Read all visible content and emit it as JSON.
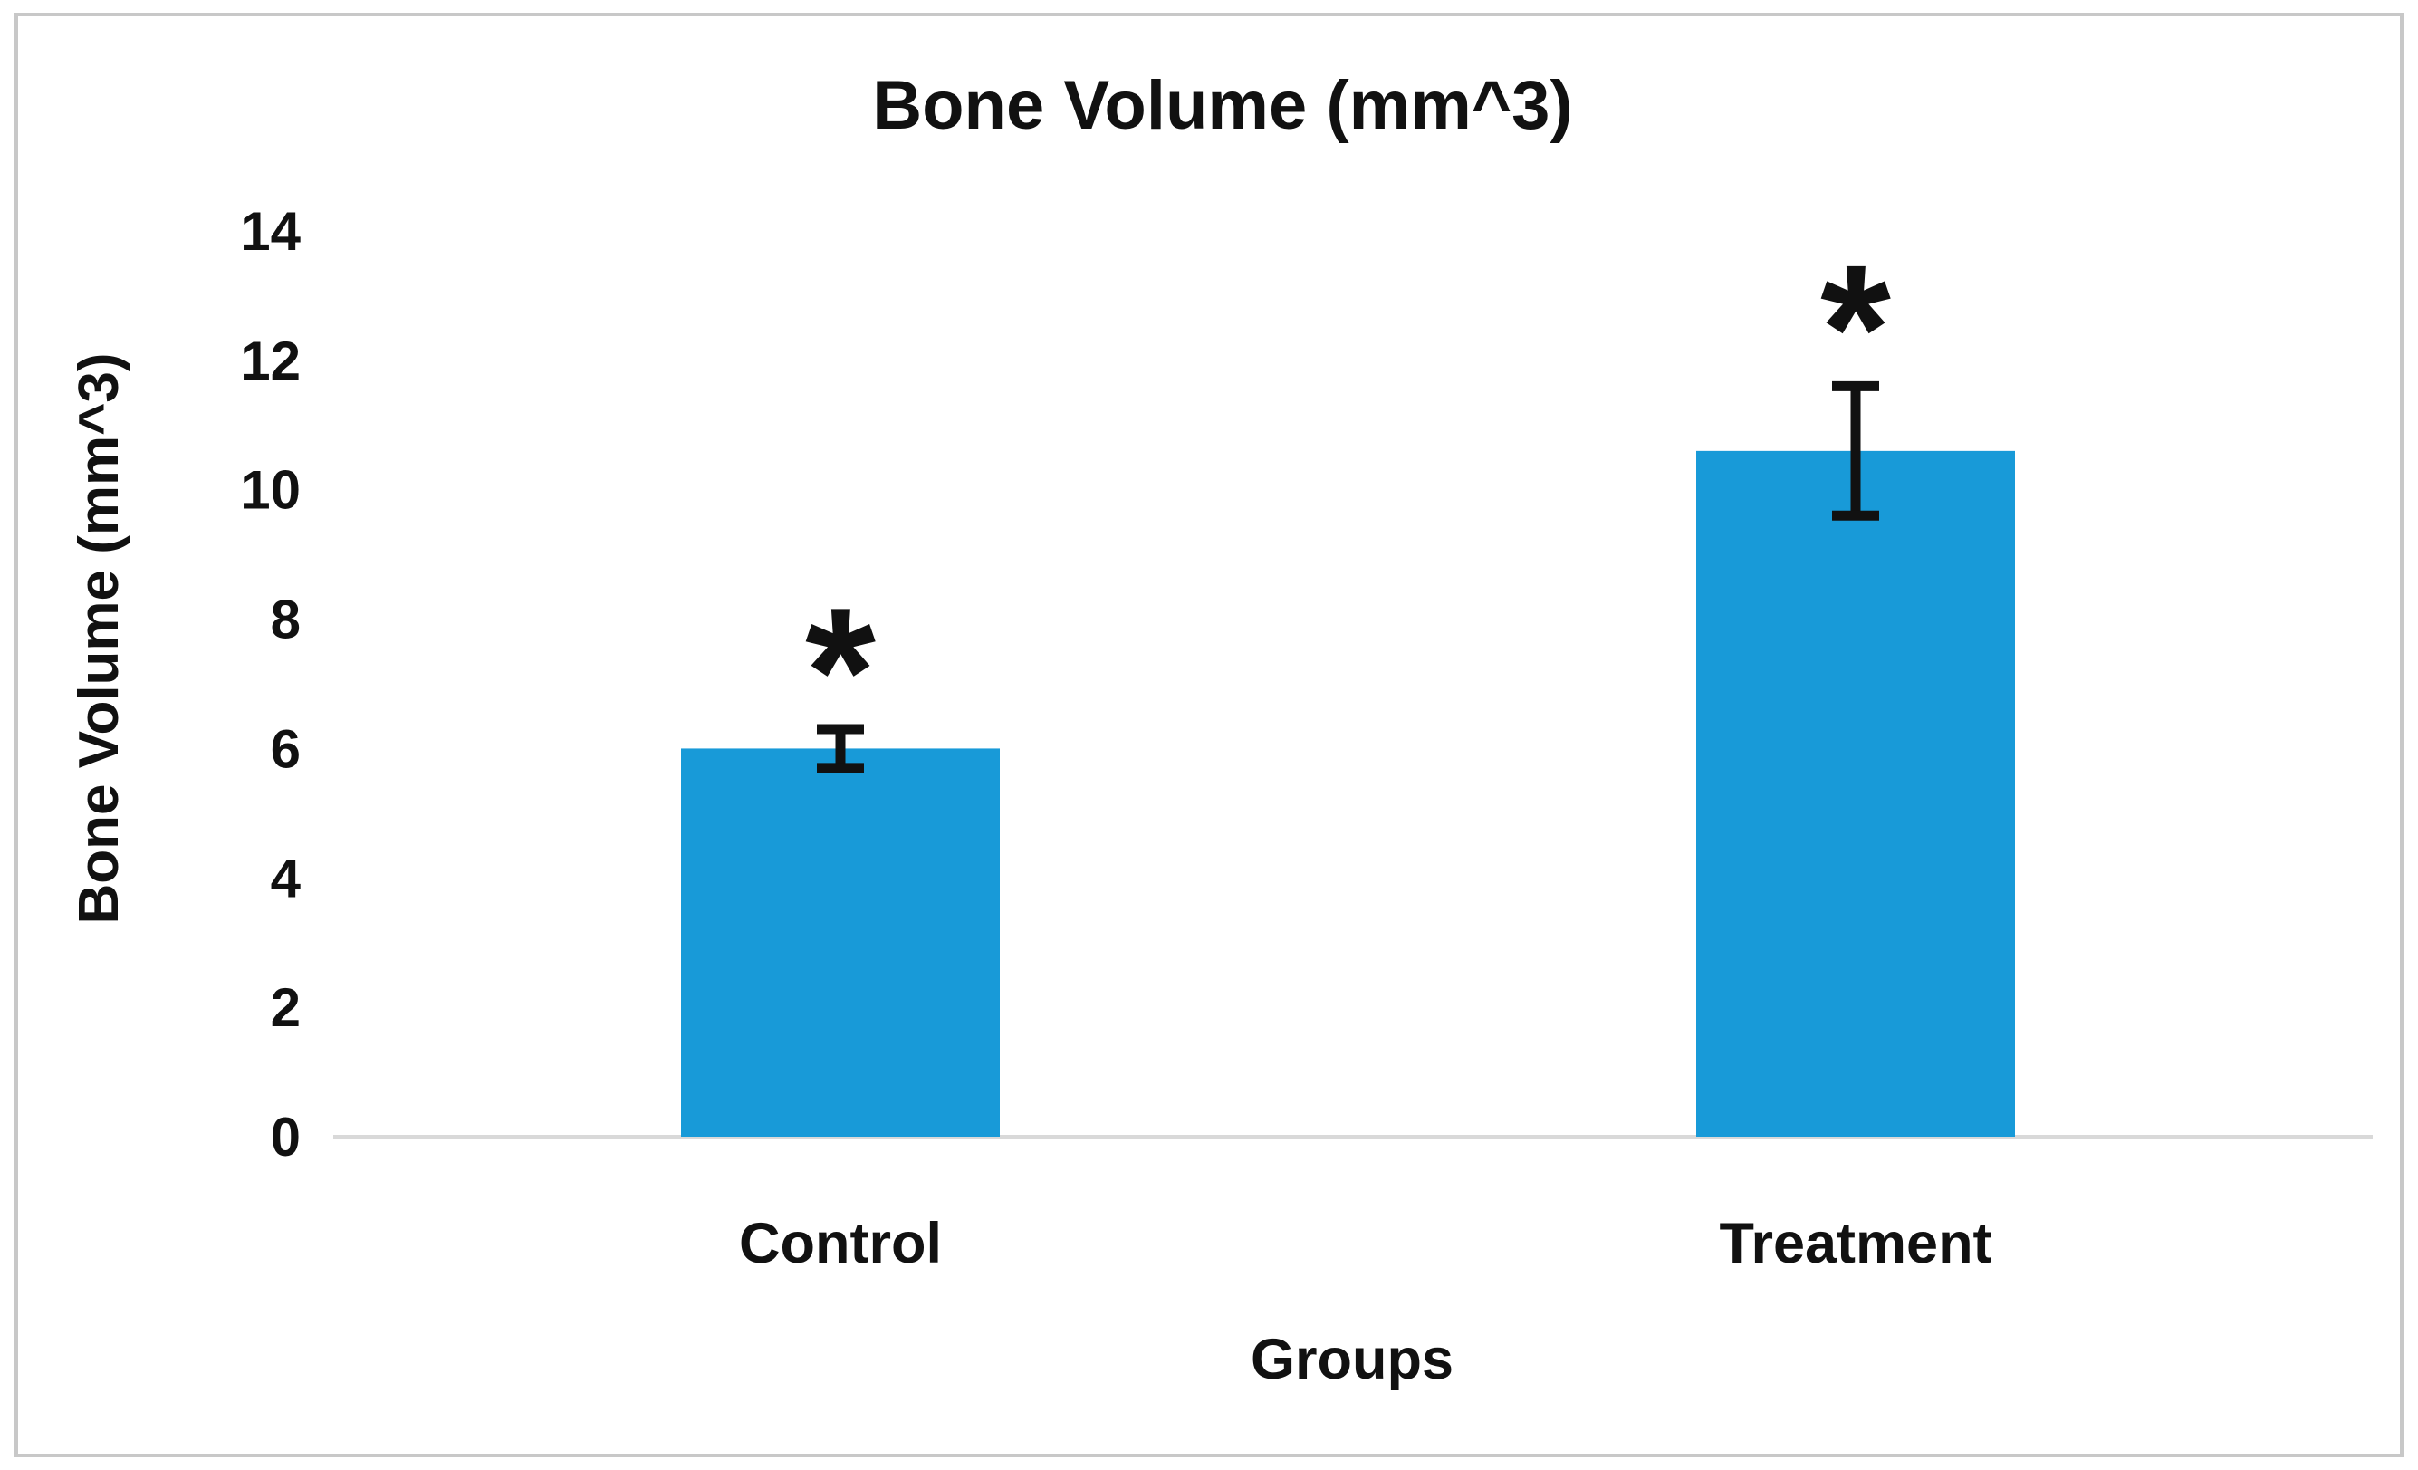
{
  "figure": {
    "background_color": "#ffffff",
    "border_color": "#c8c8c8"
  },
  "chart_data": {
    "type": "bar",
    "title": "Bone Volume (mm^3)",
    "xlabel": "Groups",
    "ylabel": "Bone Volume (mm^3)",
    "categories": [
      "Control",
      "Treatment"
    ],
    "values": [
      6.0,
      10.6
    ],
    "error_bars": [
      0.3,
      1.0
    ],
    "annotations": [
      "*",
      "*"
    ],
    "yticks": [
      0,
      2,
      4,
      6,
      8,
      10,
      12,
      14
    ],
    "ylim": [
      0,
      14
    ],
    "grid": false,
    "legend_position": "none",
    "bar_color": "#189ad8",
    "axis_line_color": "#d9d9d9",
    "error_bar_color": "#111111",
    "text_color": "#111111"
  }
}
